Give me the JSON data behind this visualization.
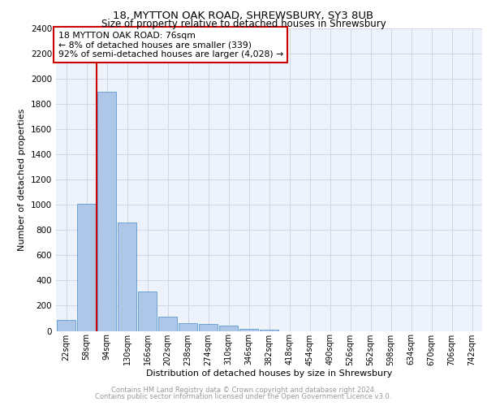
{
  "title1": "18, MYTTON OAK ROAD, SHREWSBURY, SY3 8UB",
  "title2": "Size of property relative to detached houses in Shrewsbury",
  "xlabel": "Distribution of detached houses by size in Shrewsbury",
  "ylabel": "Number of detached properties",
  "bin_labels": [
    "22sqm",
    "58sqm",
    "94sqm",
    "130sqm",
    "166sqm",
    "202sqm",
    "238sqm",
    "274sqm",
    "310sqm",
    "346sqm",
    "382sqm",
    "418sqm",
    "454sqm",
    "490sqm",
    "526sqm",
    "562sqm",
    "598sqm",
    "634sqm",
    "670sqm",
    "706sqm",
    "742sqm"
  ],
  "bar_values": [
    90,
    1010,
    1900,
    860,
    315,
    110,
    58,
    55,
    40,
    18,
    12,
    0,
    0,
    0,
    0,
    0,
    0,
    0,
    0,
    0,
    0
  ],
  "bar_color": "#aec6e8",
  "bar_edgecolor": "#5b9bd5",
  "annotation_line1": "18 MYTTON OAK ROAD: 76sqm",
  "annotation_line2": "← 8% of detached houses are smaller (339)",
  "annotation_line3": "92% of semi-detached houses are larger (4,028) →",
  "annotation_box_edgecolor": "#cc0000",
  "ylim": [
    0,
    2400
  ],
  "yticks": [
    0,
    200,
    400,
    600,
    800,
    1000,
    1200,
    1400,
    1600,
    1800,
    2000,
    2200,
    2400
  ],
  "grid_color": "#d0d8e8",
  "facecolor": "#eef2fa",
  "footer1": "Contains HM Land Registry data © Crown copyright and database right 2024.",
  "footer2": "Contains public sector information licensed under the Open Government Licence v3.0.",
  "vline_color": "#cc0000",
  "vline_pos": 1.5
}
